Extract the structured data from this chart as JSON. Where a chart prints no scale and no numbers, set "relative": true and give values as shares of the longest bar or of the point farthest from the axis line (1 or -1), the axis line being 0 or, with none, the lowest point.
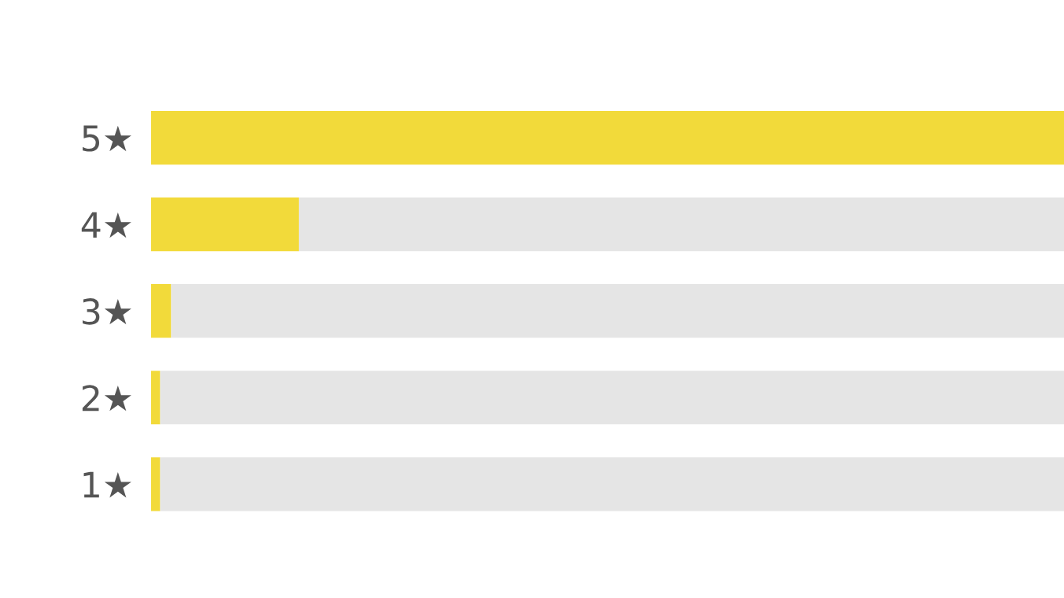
{
  "chart_data": {
    "type": "bar",
    "orientation": "horizontal",
    "relative": true,
    "stacked": true,
    "categories": [
      "5★",
      "4★",
      "3★",
      "2★",
      "1★"
    ],
    "series": [
      {
        "color": "#f2da3a",
        "values": [
          1,
          0.162,
          0.022,
          0.01,
          0.01
        ]
      },
      {
        "color": "#e5e5e5",
        "values": [
          0,
          0.838,
          0.978,
          0.99,
          0.99
        ]
      }
    ],
    "grid": false,
    "legend": false
  }
}
